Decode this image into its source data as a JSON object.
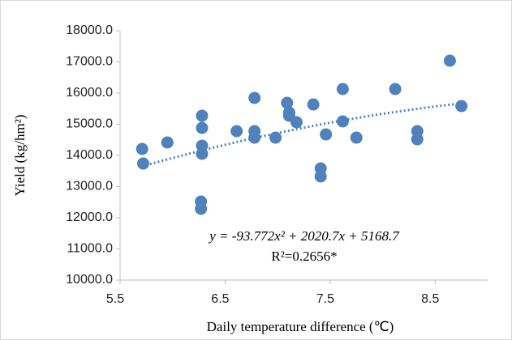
{
  "chart_data": {
    "type": "scatter",
    "x_label": "Daily temperature difference (℃)",
    "y_label": "Yield (kg/hm²)",
    "x": [
      5.71,
      5.72,
      5.95,
      6.28,
      6.28,
      6.28,
      6.28,
      6.27,
      6.27,
      6.61,
      6.78,
      6.78,
      6.78,
      6.98,
      7.09,
      7.11,
      7.11,
      7.18,
      7.34,
      7.41,
      7.41,
      7.46,
      7.62,
      7.62,
      7.75,
      8.12,
      8.33,
      8.33,
      8.64,
      8.75
    ],
    "values": [
      14208,
      13740,
      14416,
      15273,
      14883,
      14312,
      14052,
      12519,
      12286,
      14779,
      15844,
      14779,
      14571,
      14571,
      15688,
      15273,
      15377,
      15065,
      15636,
      13584,
      13325,
      14675,
      16130,
      15091,
      14571,
      16130,
      14779,
      14519,
      17039,
      15584
    ],
    "color": "#4f81bd",
    "trendline": {
      "coefficients": [
        -93.772,
        2020.7,
        5168.7
      ],
      "color": "#4f81bd"
    },
    "annotations": [
      "y = -93.772x² + 2020.7x + 5168.7",
      "R²=0.2656*"
    ],
    "xlim": [
      5.5,
      9.0
    ],
    "xticks": [
      5.5,
      6.5,
      7.5,
      8.5
    ],
    "ylim": [
      10000,
      18000
    ],
    "yticks": [
      {
        "value": 10000,
        "label": "10000.0"
      },
      {
        "value": 11000,
        "label": "11000.0"
      },
      {
        "value": 12000,
        "label": "12000.0"
      },
      {
        "value": 13000,
        "label": "13000.0"
      },
      {
        "value": 14000,
        "label": "14000.0"
      },
      {
        "value": 15000,
        "label": "15000.0"
      },
      {
        "value": 16000,
        "label": "16000.0"
      },
      {
        "value": 17000,
        "label": "17000.0"
      },
      {
        "value": 18000,
        "label": "18000.0"
      }
    ],
    "grid": false
  }
}
